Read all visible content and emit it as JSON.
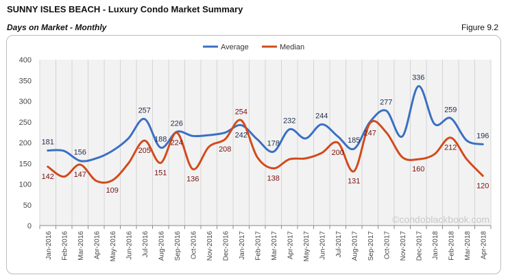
{
  "header": {
    "title": "SUNNY ISLES BEACH - Luxury Condo Market Summary",
    "subtitle": "Days on Market - Monthly",
    "figure": "Figure 9.2"
  },
  "watermark": "©condoblackbook.com",
  "chart_data": {
    "type": "line",
    "smooth": true,
    "categories": [
      "Jan-2016",
      "Feb-2016",
      "Mar-2016",
      "Apr-2016",
      "May-2016",
      "Jun-2016",
      "Jul-2016",
      "Aug-2016",
      "Sep-2016",
      "Oct-2016",
      "Nov-2016",
      "Dec-2016",
      "Jan-2017",
      "Feb-2017",
      "Mar-2017",
      "Apr-2017",
      "May-2017",
      "Jun-2017",
      "Jul-2017",
      "Aug-2017",
      "Sep-2017",
      "Oct-2017",
      "Nov-2017",
      "Dec-2017",
      "Jan-2018",
      "Feb-2018",
      "Mar-2018",
      "Apr-2018"
    ],
    "ylim": [
      0,
      400
    ],
    "yticks": [
      0,
      50,
      100,
      150,
      200,
      250,
      300,
      350,
      400
    ],
    "grid": "vertical",
    "legend": "top",
    "series": [
      {
        "name": "Average",
        "color": "#3a6fc4",
        "labelColor": "#1f2d4a",
        "values": [
          181,
          180,
          156,
          162,
          180,
          210,
          257,
          188,
          226,
          216,
          218,
          224,
          242,
          208,
          178,
          232,
          210,
          244,
          215,
          185,
          250,
          277,
          215,
          336,
          245,
          259,
          205,
          196
        ],
        "labels": [
          181,
          null,
          156,
          null,
          null,
          null,
          257,
          188,
          226,
          null,
          null,
          null,
          242,
          null,
          178,
          232,
          null,
          244,
          null,
          185,
          null,
          277,
          null,
          336,
          null,
          259,
          null,
          196
        ]
      },
      {
        "name": "Median",
        "color": "#d24a1c",
        "labelColor": "#7a1010",
        "values": [
          142,
          118,
          147,
          108,
          109,
          150,
          205,
          151,
          224,
          136,
          190,
          208,
          254,
          165,
          138,
          160,
          162,
          175,
          200,
          131,
          247,
          225,
          165,
          160,
          172,
          212,
          160,
          120
        ],
        "labels": [
          142,
          null,
          147,
          null,
          109,
          null,
          205,
          151,
          224,
          136,
          null,
          208,
          254,
          null,
          138,
          null,
          null,
          null,
          200,
          131,
          247,
          null,
          null,
          160,
          null,
          212,
          null,
          120
        ]
      }
    ]
  }
}
